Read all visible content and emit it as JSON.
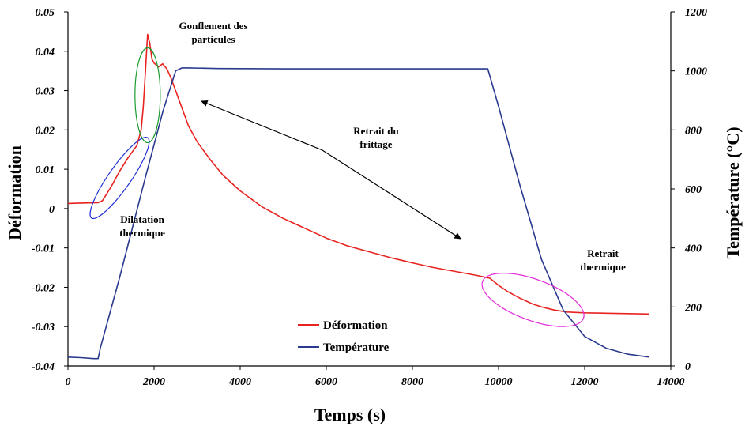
{
  "chart_data": {
    "type": "line",
    "xlabel": "Temps (s)",
    "ylabel": "Déformation",
    "y2label": "Température (°C)",
    "xlim": [
      0,
      14000
    ],
    "ylim": [
      -0.04,
      0.05
    ],
    "y2lim": [
      0,
      1200
    ],
    "xticks": [
      "0",
      "2000",
      "4000",
      "6000",
      "8000",
      "10000",
      "12000",
      "14000"
    ],
    "yticks": [
      "0.05",
      "0.04",
      "0.03",
      "0.02",
      "0.01",
      "0",
      "-0.01",
      "-0.02",
      "-0.03",
      "-0.04"
    ],
    "y2ticks": [
      "1200",
      "1000",
      "800",
      "600",
      "400",
      "200",
      "0"
    ],
    "grid": false,
    "legend_position": "bottom-center",
    "series": [
      {
        "name": "Déformation",
        "axis": "left",
        "color": "#e8231f",
        "x": [
          0,
          300,
          700,
          800,
          1000,
          1200,
          1400,
          1600,
          1700,
          1750,
          1800,
          1850,
          1900,
          1950,
          2000,
          2100,
          2200,
          2300,
          2400,
          2500,
          2600,
          2800,
          3000,
          3300,
          3600,
          4000,
          4500,
          5000,
          5500,
          6000,
          6500,
          7000,
          7500,
          8000,
          8500,
          9000,
          9500,
          9800,
          10000,
          10200,
          10500,
          10800,
          11000,
          11300,
          11600,
          12000,
          12500,
          13000,
          13500
        ],
        "values": [
          0.0013,
          0.0014,
          0.0015,
          0.002,
          0.0055,
          0.0095,
          0.013,
          0.016,
          0.02,
          0.026,
          0.035,
          0.0443,
          0.042,
          0.038,
          0.037,
          0.036,
          0.0368,
          0.0355,
          0.033,
          0.03,
          0.027,
          0.021,
          0.017,
          0.0125,
          0.0085,
          0.0045,
          0.0005,
          -0.0025,
          -0.005,
          -0.0075,
          -0.0095,
          -0.011,
          -0.0125,
          -0.0138,
          -0.015,
          -0.016,
          -0.017,
          -0.0177,
          -0.0195,
          -0.021,
          -0.0228,
          -0.0243,
          -0.025,
          -0.0258,
          -0.0263,
          -0.0265,
          -0.0266,
          -0.0267,
          -0.0268
        ]
      },
      {
        "name": "Température",
        "axis": "right",
        "color": "#2a3a8f",
        "x": [
          0,
          300,
          600,
          700,
          750,
          1200,
          1800,
          2200,
          2500,
          2650,
          2800,
          3500,
          5000,
          7000,
          9000,
          9750,
          10000,
          10500,
          11000,
          11500,
          12000,
          12500,
          13000,
          13500
        ],
        "values": [
          30,
          28,
          25,
          25,
          60,
          300,
          640,
          860,
          1000,
          1010,
          1010,
          1008,
          1007,
          1007,
          1007,
          1007,
          880,
          610,
          360,
          190,
          100,
          60,
          40,
          30
        ]
      }
    ],
    "annotations": [
      {
        "lines": [
          "Gonflement des",
          "particules"
        ]
      },
      {
        "lines": [
          "Retrait du",
          "frittage"
        ]
      },
      {
        "lines": [
          "Dilatation",
          "thermique"
        ]
      },
      {
        "lines": [
          "Retrait",
          "thermique"
        ]
      }
    ],
    "highlight_colors": {
      "gonflement": "#1a9c2e",
      "dilatation": "#1f2fd6",
      "retrait_thermique": "#e62ad9"
    },
    "arrow_color": "#000000"
  }
}
